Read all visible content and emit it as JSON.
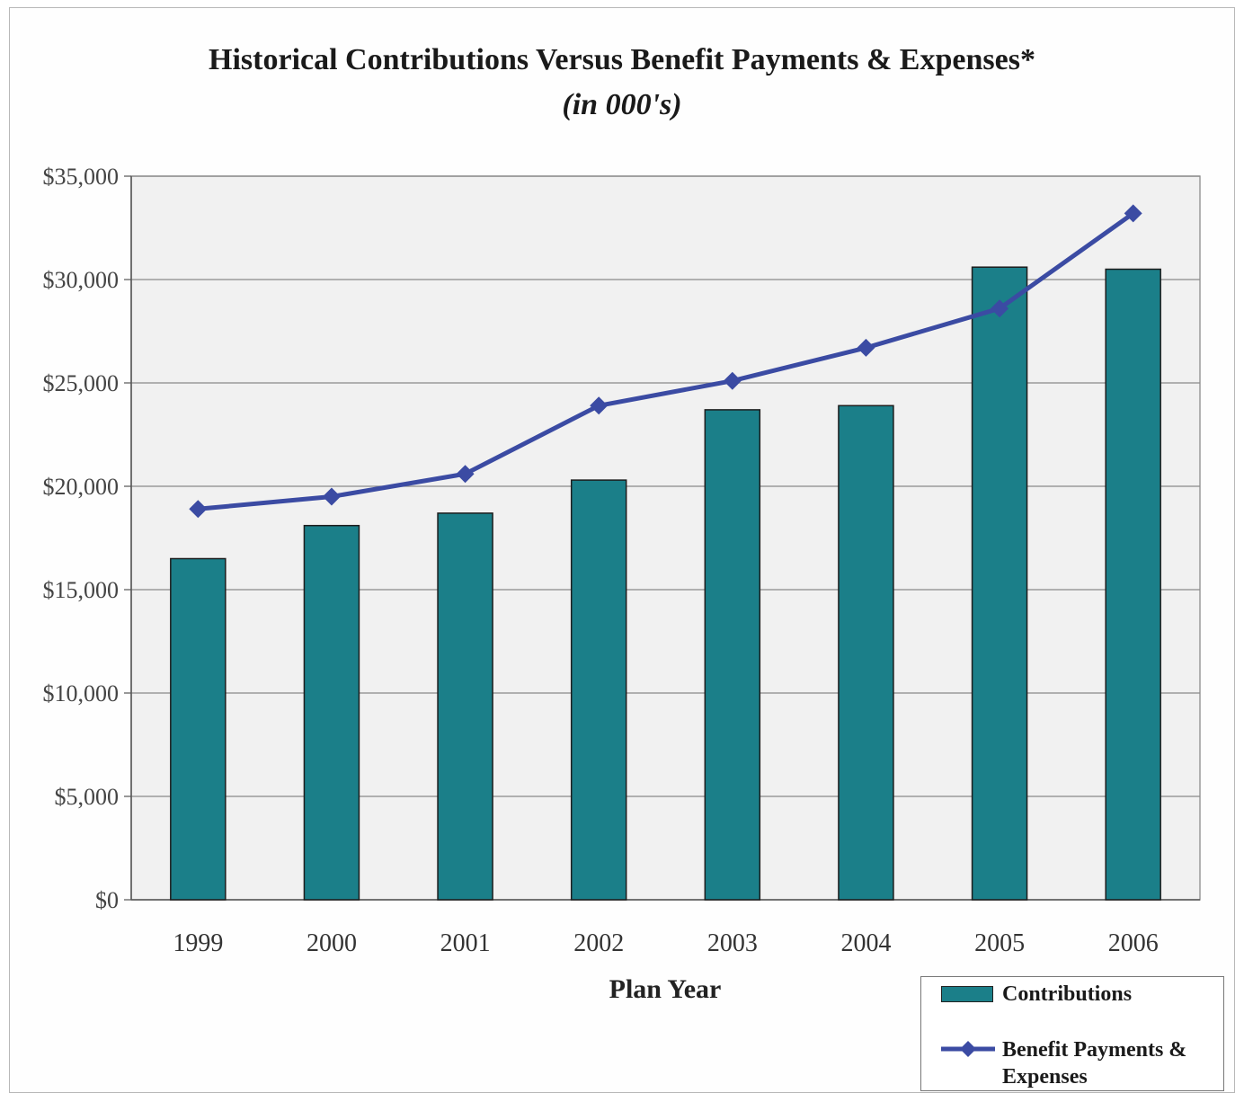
{
  "chart_data": {
    "type": "bar",
    "title": "Historical Contributions Versus Benefit Payments & Expenses*",
    "subtitle": "(in 000's)",
    "xlabel": "Plan Year",
    "ylabel": "",
    "categories": [
      "1999",
      "2000",
      "2001",
      "2002",
      "2003",
      "2004",
      "2005",
      "2006"
    ],
    "ylim": [
      0,
      35000
    ],
    "yticks": [
      0,
      5000,
      10000,
      15000,
      20000,
      25000,
      30000,
      35000
    ],
    "ytick_labels": [
      "$0",
      "$5,000",
      "$10,000",
      "$15,000",
      "$20,000",
      "$25,000",
      "$30,000",
      "$35,000"
    ],
    "grid": true,
    "legend_position": "bottom-right",
    "series": [
      {
        "name": "Contributions",
        "type": "bar",
        "color": "#1b7f89",
        "values": [
          16500,
          18100,
          18700,
          20300,
          23700,
          23900,
          30600,
          30500
        ]
      },
      {
        "name": "Benefit Payments & Expenses",
        "legend_lines": [
          "Benefit Payments &",
          "Expenses"
        ],
        "type": "line",
        "marker": "diamond",
        "color": "#3b4ba3",
        "values": [
          18900,
          19500,
          20600,
          23900,
          25100,
          26700,
          28600,
          33200
        ]
      }
    ]
  }
}
